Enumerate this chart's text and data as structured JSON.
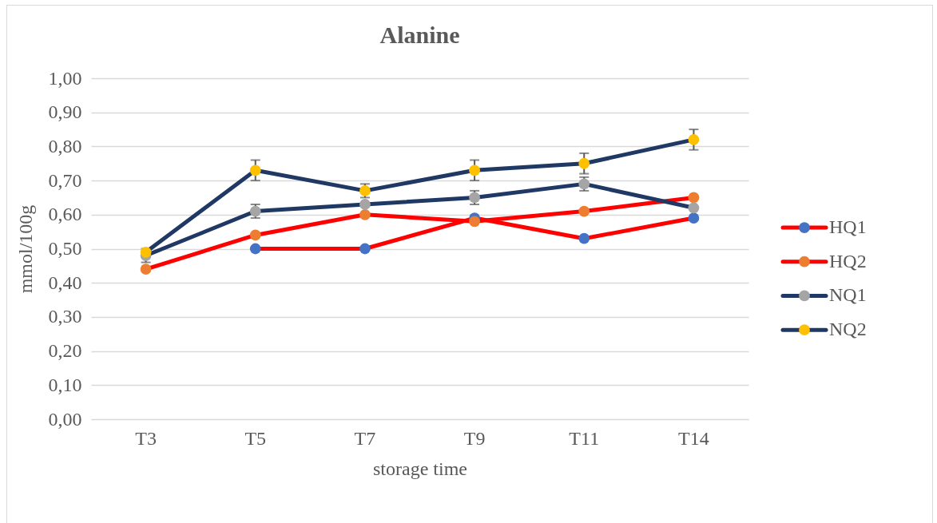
{
  "chart_data": {
    "type": "line",
    "title": "Alanine",
    "xlabel": "storage time",
    "ylabel": "mmol/100g",
    "categories": [
      "T3",
      "T5",
      "T7",
      "T9",
      "T11",
      "T14"
    ],
    "series": [
      {
        "name": "HQ1",
        "color": "#ff0000",
        "colors": [
          "#4472c4",
          "#4472c4",
          "#4472c4",
          "#4472c4",
          "#4472c4",
          "#4472c4"
        ],
        "values": [
          null,
          0.5,
          0.5,
          0.59,
          0.53,
          0.59
        ]
      },
      {
        "name": "HQ2",
        "color": "#ff0000",
        "colors": [
          "#ed7d31",
          "#ed7d31",
          "#ed7d31",
          "#ed7d31",
          "#ed7d31",
          "#ed7d31"
        ],
        "values": [
          0.44,
          0.54,
          0.6,
          0.58,
          0.61,
          0.65
        ]
      },
      {
        "name": "NQ1",
        "color": "#203864",
        "colors": [
          "#a5a5a5",
          "#a5a5a5",
          "#a5a5a5",
          "#a5a5a5",
          "#a5a5a5",
          "#a5a5a5"
        ],
        "values": [
          0.48,
          0.61,
          0.63,
          0.65,
          0.69,
          0.62
        ],
        "errors": [
          0.02,
          0.02,
          null,
          0.02,
          0.02,
          null
        ]
      },
      {
        "name": "NQ2",
        "color": "#203864",
        "colors": [
          "#ffc000",
          "#ffc000",
          "#ffc000",
          "#ffc000",
          "#ffc000",
          "#ffc000"
        ],
        "values": [
          0.49,
          0.73,
          0.67,
          0.73,
          0.75,
          0.82
        ],
        "errors": [
          null,
          0.03,
          0.02,
          0.03,
          0.03,
          0.03
        ]
      }
    ],
    "ylim": [
      0,
      1
    ],
    "yticks": [
      {
        "value": 0,
        "label": "0,00"
      },
      {
        "value": 0.1,
        "label": "0,10"
      },
      {
        "value": 0.2,
        "label": "0,20"
      },
      {
        "value": 0.3,
        "label": "0,30"
      },
      {
        "value": 0.4,
        "label": "0,40"
      },
      {
        "value": 0.5,
        "label": "0,50"
      },
      {
        "value": 0.6,
        "label": "0,60"
      },
      {
        "value": 0.7,
        "label": "0,70"
      },
      {
        "value": 0.8,
        "label": "0,80"
      },
      {
        "value": 0.9,
        "label": "0,90"
      },
      {
        "value": 1,
        "label": "1,00"
      }
    ],
    "grid": "y",
    "legend": "right",
    "marker": "circle",
    "line_style": "solid"
  }
}
